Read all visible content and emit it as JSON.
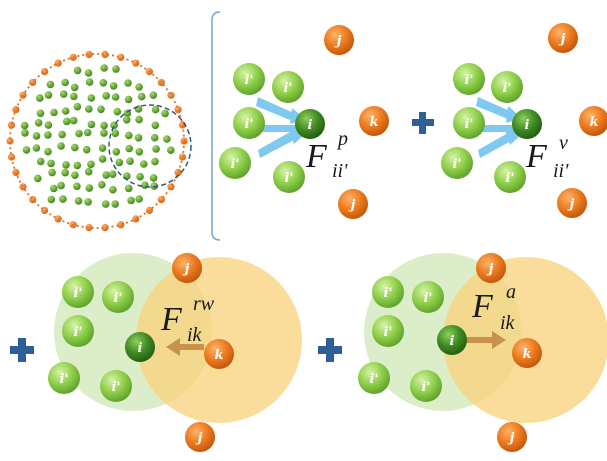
{
  "labels": {
    "i": "i",
    "i_prime": "i'",
    "j": "j",
    "k": "k"
  },
  "forces": {
    "pressure": {
      "main": "F",
      "sup": "p",
      "sub": "ii'"
    },
    "viscous": {
      "main": "F",
      "sup": "v",
      "sub": "ii'"
    },
    "rw": {
      "main": "F",
      "sup": "rw",
      "sub": "ik"
    },
    "attraction": {
      "main": "F",
      "sup": "a",
      "sub": "ik"
    }
  },
  "colors": {
    "dark_green": "#3f7f1f",
    "light_green": "#8fcf4a",
    "orange": "#e8701a",
    "blue_arrow": "#7fc8f0",
    "plus": "#2f5f96",
    "brown_arrow": "#c8924a",
    "green_zone": "#d4ecc0",
    "yellow_zone": "#fbd98a"
  }
}
